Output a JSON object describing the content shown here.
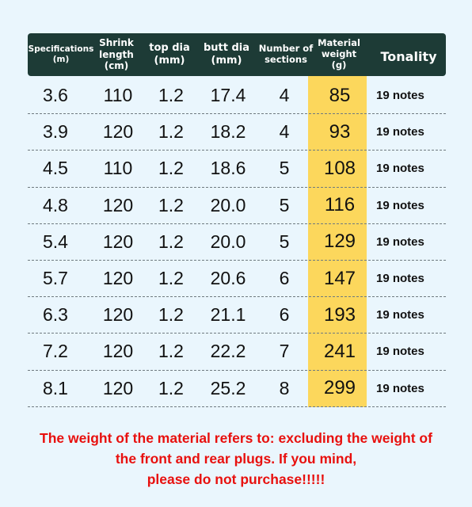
{
  "header": {
    "specifications": "Specifications\n(m)",
    "shrink_length": "Shrink\nlength\n(cm)",
    "top_dia": "top dia\n(mm)",
    "butt_dia": "butt dia\n(mm)",
    "sections": "Number of\nsections",
    "material_weight": "Material\nweight\n(g)",
    "tonality": "Tonality"
  },
  "rows": [
    {
      "spec": "3.6",
      "shrink": "110",
      "top": "1.2",
      "butt": "17.4",
      "sections": "4",
      "weight": "85",
      "tone": "19 notes"
    },
    {
      "spec": "3.9",
      "shrink": "120",
      "top": "1.2",
      "butt": "18.2",
      "sections": "4",
      "weight": "93",
      "tone": "19 notes"
    },
    {
      "spec": "4.5",
      "shrink": "110",
      "top": "1.2",
      "butt": "18.6",
      "sections": "5",
      "weight": "108",
      "tone": "19 notes"
    },
    {
      "spec": "4.8",
      "shrink": "120",
      "top": "1.2",
      "butt": "20.0",
      "sections": "5",
      "weight": "116",
      "tone": "19 notes"
    },
    {
      "spec": "5.4",
      "shrink": "120",
      "top": "1.2",
      "butt": "20.0",
      "sections": "5",
      "weight": "129",
      "tone": "19 notes"
    },
    {
      "spec": "5.7",
      "shrink": "120",
      "top": "1.2",
      "butt": "20.6",
      "sections": "6",
      "weight": "147",
      "tone": "19 notes"
    },
    {
      "spec": "6.3",
      "shrink": "120",
      "top": "1.2",
      "butt": "21.1",
      "sections": "6",
      "weight": "193",
      "tone": "19 notes"
    },
    {
      "spec": "7.2",
      "shrink": "120",
      "top": "1.2",
      "butt": "22.2",
      "sections": "7",
      "weight": "241",
      "tone": "19 notes"
    },
    {
      "spec": "8.1",
      "shrink": "120",
      "top": "1.2",
      "butt": "25.2",
      "sections": "8",
      "weight": "299",
      "tone": "19 notes"
    }
  ],
  "notice": {
    "line1": "The weight of the material refers to: excluding the weight of",
    "line2": "the front and rear plugs. If you mind,",
    "line3": "please do not purchase!!!!!"
  },
  "colors": {
    "header_bg": "#1d3b36",
    "highlight": "#fcd75c",
    "page_bg": "#eaf6fd",
    "notice": "#e8100e"
  }
}
